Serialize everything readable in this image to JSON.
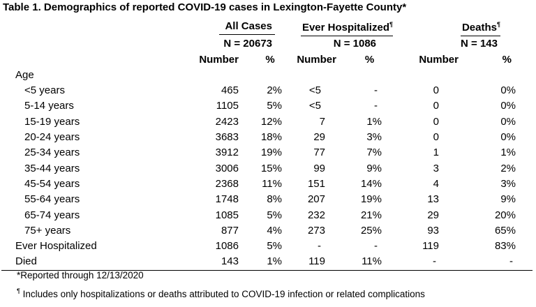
{
  "title": "Table 1. Demographics of reported COVID-19 cases in Lexington-Fayette County*",
  "groups": [
    {
      "name": "All Cases",
      "mark": "",
      "n": "N = 20673"
    },
    {
      "name": "Ever Hospitalized",
      "mark": "¶",
      "n": "N = 1086"
    },
    {
      "name": "Deaths",
      "mark": "¶",
      "n": "N = 143"
    }
  ],
  "subheaders": {
    "number": "Number",
    "percent": "%"
  },
  "section_age": "Age",
  "rows": [
    {
      "label": "<5 years",
      "c": [
        "465",
        "2%",
        "<5",
        "-",
        "0",
        "0%"
      ]
    },
    {
      "label": "5-14 years",
      "c": [
        "1105",
        "5%",
        "<5",
        "-",
        "0",
        "0%"
      ]
    },
    {
      "label": "15-19 years",
      "c": [
        "2423",
        "12%",
        "7",
        "1%",
        "0",
        "0%"
      ]
    },
    {
      "label": "20-24 years",
      "c": [
        "3683",
        "18%",
        "29",
        "3%",
        "0",
        "0%"
      ]
    },
    {
      "label": "25-34 years",
      "c": [
        "3912",
        "19%",
        "77",
        "7%",
        "1",
        "1%"
      ]
    },
    {
      "label": "35-44 years",
      "c": [
        "3006",
        "15%",
        "99",
        "9%",
        "3",
        "2%"
      ]
    },
    {
      "label": "45-54 years",
      "c": [
        "2368",
        "11%",
        "151",
        "14%",
        "4",
        "3%"
      ]
    },
    {
      "label": "55-64 years",
      "c": [
        "1748",
        "8%",
        "207",
        "19%",
        "13",
        "9%"
      ]
    },
    {
      "label": "65-74 years",
      "c": [
        "1085",
        "5%",
        "232",
        "21%",
        "29",
        "20%"
      ]
    },
    {
      "label": "75+ years",
      "c": [
        "877",
        "4%",
        "273",
        "25%",
        "93",
        "65%"
      ]
    }
  ],
  "summary_rows": [
    {
      "label": "Ever Hospitalized",
      "c": [
        "1086",
        "5%",
        "-",
        "-",
        "119",
        "83%"
      ]
    },
    {
      "label": "Died",
      "c": [
        "143",
        "1%",
        "119",
        "11%",
        "-",
        "-"
      ]
    }
  ],
  "footnotes": {
    "star": "*Reported through 12/13/2020",
    "pilcrow_mark": "¶",
    "pilcrow_text": " Includes only hospitalizations or deaths attributed to COVID-19 infection or related complications"
  }
}
